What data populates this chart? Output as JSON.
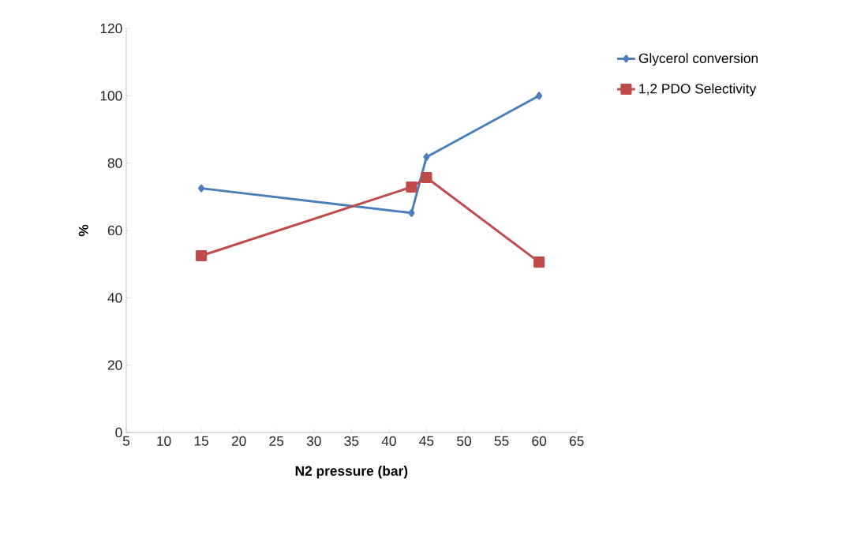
{
  "chart_data": {
    "type": "line",
    "xlabel": "N2 pressure (bar)",
    "ylabel": "%",
    "xlim": [
      5,
      65
    ],
    "xticks": [
      5,
      10,
      15,
      20,
      25,
      30,
      35,
      40,
      45,
      50,
      55,
      60,
      65
    ],
    "ylim": [
      0,
      120
    ],
    "yticks": [
      0,
      20,
      40,
      60,
      80,
      100,
      120
    ],
    "legend": "right",
    "series": [
      {
        "name": "Glycerol conversion",
        "color": "#4a7ebb",
        "marker": "diamond",
        "x": [
          15,
          43,
          45,
          60
        ],
        "values": [
          72.5,
          65.2,
          81.8,
          100
        ]
      },
      {
        "name": "1,2 PDO Selectivity",
        "color": "#be4b48",
        "marker": "square",
        "x": [
          15,
          43,
          45,
          60
        ],
        "values": [
          52.5,
          72.9,
          75.7,
          50.6
        ]
      }
    ]
  }
}
